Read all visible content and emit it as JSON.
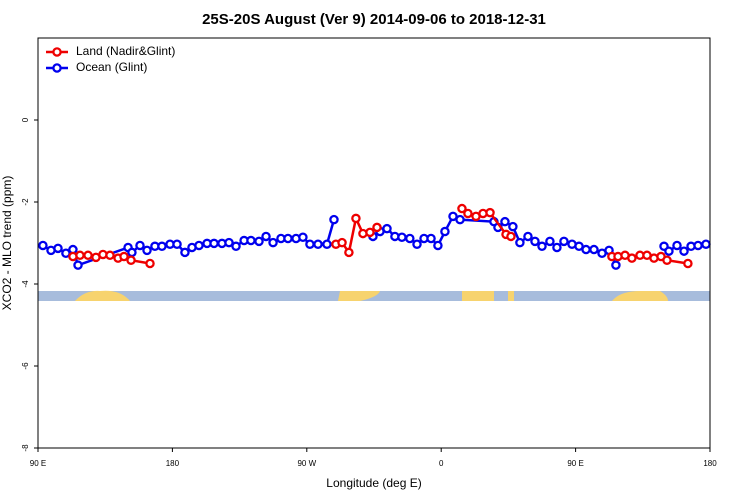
{
  "chart_data": {
    "type": "line",
    "title": "25S-20S August (Ver 9)   2014-09-06 to 2018-12-31",
    "xlabel": "Longitude (deg E)",
    "ylabel": "XCO2 - MLO trend (ppm)",
    "xlim": [
      90,
      540
    ],
    "ylim": [
      -8,
      2
    ],
    "xticks": [
      {
        "value": 90,
        "label": "90 E"
      },
      {
        "value": 180,
        "label": "180"
      },
      {
        "value": 270,
        "label": "90 W"
      },
      {
        "value": 360,
        "label": "0"
      },
      {
        "value": 450,
        "label": "90 E"
      },
      {
        "value": 540,
        "label": "180"
      }
    ],
    "yticks": [
      0,
      -2,
      -4,
      -6,
      -8
    ],
    "legend": "topleft",
    "series": [
      {
        "name": "Land (Nadir&Glint)",
        "color": "#ee0000",
        "x": [
          113.4,
          118.1,
          123.5,
          128.8,
          133.5,
          138.2,
          143.6,
          147.6,
          152.3,
          165,
          null,
          289.5,
          293.6,
          298.2,
          302.9,
          307.6,
          312.3,
          317,
          null,
          373.9,
          377.9,
          383.3,
          388,
          392.7,
          403.4,
          406.7,
          null,
          474.3,
          478.4,
          483.1,
          487.7,
          493.1,
          497.8,
          502.5,
          507.2,
          511.2,
          525.2
        ],
        "values": [
          -3.33,
          -3.3,
          -3.3,
          -3.35,
          -3.28,
          -3.3,
          -3.37,
          -3.33,
          -3.42,
          -3.5,
          null,
          -3.03,
          -2.99,
          -3.23,
          -2.4,
          -2.77,
          -2.74,
          -2.62,
          null,
          -2.16,
          -2.28,
          -2.35,
          -2.28,
          -2.26,
          -2.79,
          -2.84,
          null,
          -3.33,
          -3.33,
          -3.3,
          -3.37,
          -3.3,
          -3.3,
          -3.37,
          -3.33,
          -3.42,
          -3.5
        ]
      },
      {
        "name": "Ocean (Glint)",
        "color": "#0000ee",
        "x": [
          93.3,
          98.7,
          103.4,
          108.7,
          113.4,
          116.8,
          150.3,
          152.9,
          158.3,
          163,
          168.3,
          173,
          178.4,
          183.1,
          188.4,
          193.1,
          197.8,
          203.2,
          207.9,
          213.2,
          217.9,
          222.6,
          228,
          232.6,
          238,
          242.7,
          247.4,
          252.7,
          257.4,
          262.8,
          267.4,
          272.1,
          277.5,
          283.5,
          288.2,
          null,
          314.3,
          319,
          323.7,
          329,
          333.7,
          339,
          343.8,
          348.5,
          353.2,
          357.8,
          362.5,
          367.9,
          372.6,
          395.3,
          398,
          402.7,
          408,
          412.7,
          418.1,
          422.8,
          427.5,
          432.8,
          437.5,
          442.2,
          447.6,
          452.3,
          457,
          462.3,
          467.7,
          472.4,
          477,
          null,
          509.2,
          512.5,
          517.9,
          522.6,
          527.3,
          532,
          537.3
        ],
        "values": [
          -3.06,
          -3.18,
          -3.13,
          -3.25,
          -3.16,
          -3.54,
          -3.11,
          -3.23,
          -3.06,
          -3.18,
          -3.08,
          -3.08,
          -3.03,
          -3.03,
          -3.23,
          -3.11,
          -3.06,
          -3.01,
          -3.01,
          -3.01,
          -2.99,
          -3.08,
          -2.94,
          -2.94,
          -2.96,
          -2.84,
          -2.99,
          -2.89,
          -2.89,
          -2.89,
          -2.86,
          -3.03,
          -3.03,
          -3.03,
          -2.43,
          null,
          -2.84,
          -2.72,
          -2.65,
          -2.84,
          -2.86,
          -2.89,
          -3.03,
          -2.89,
          -2.89,
          -3.06,
          -2.72,
          -2.35,
          -2.43,
          -2.48,
          -2.62,
          -2.48,
          -2.6,
          -2.99,
          -2.84,
          -2.96,
          -3.08,
          -2.96,
          -3.11,
          -2.96,
          -3.03,
          -3.08,
          -3.16,
          -3.16,
          -3.25,
          -3.18,
          -3.54,
          null,
          -3.08,
          -3.2,
          -3.06,
          -3.2,
          -3.08,
          -3.06,
          -3.03
        ]
      }
    ]
  }
}
